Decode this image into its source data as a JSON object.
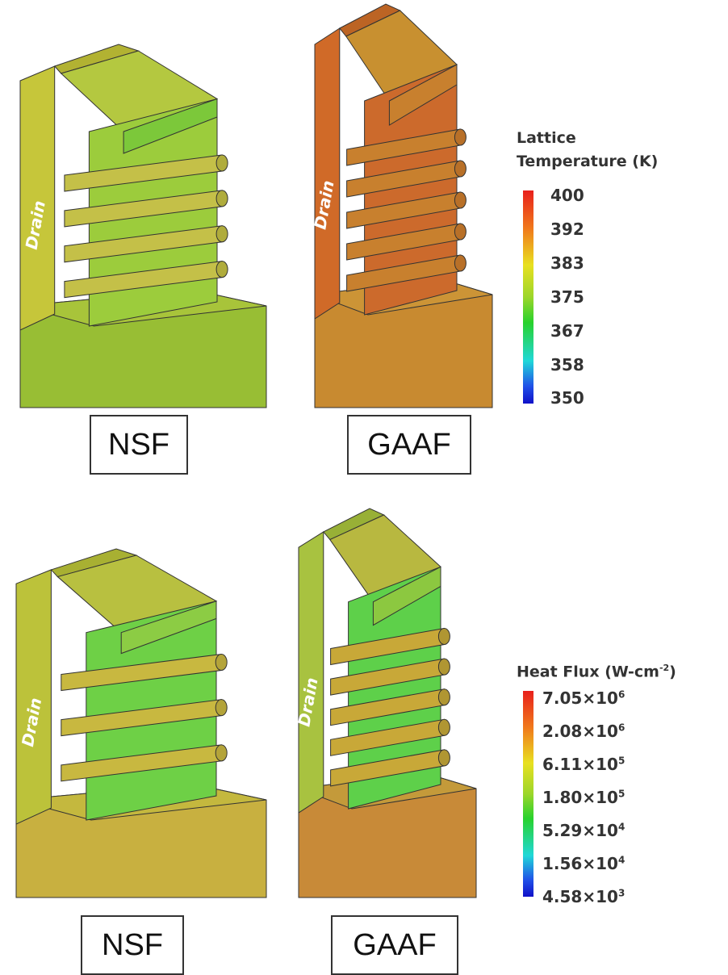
{
  "top": {
    "structures": [
      {
        "label": "NSF",
        "drain_label": "Drain"
      },
      {
        "label": "GAAF",
        "drain_label": "Drain"
      }
    ],
    "legend": {
      "title_line1": "Lattice",
      "title_line2": "Temperature (K)",
      "ticks": [
        "400",
        "392",
        "383",
        "375",
        "367",
        "358",
        "350"
      ]
    }
  },
  "bottom": {
    "structures": [
      {
        "label": "NSF",
        "drain_label": "Drain"
      },
      {
        "label": "GAAF",
        "drain_label": "Drain"
      }
    ],
    "legend": {
      "title": "Heat Flux (W-cm",
      "title_exp": "-2",
      "title_end": ")",
      "ticks": [
        {
          "mantissa": "7.05×10",
          "exp": "6"
        },
        {
          "mantissa": "2.08×10",
          "exp": "6"
        },
        {
          "mantissa": "6.11×10",
          "exp": "5"
        },
        {
          "mantissa": "1.80×10",
          "exp": "5"
        },
        {
          "mantissa": "5.29×10",
          "exp": "4"
        },
        {
          "mantissa": "1.56×10",
          "exp": "4"
        },
        {
          "mantissa": "4.58×10",
          "exp": "3"
        }
      ]
    }
  },
  "colormap": [
    "#e8201c",
    "#f07a1c",
    "#e8e020",
    "#28d22c",
    "#20d8d8",
    "#2050e8",
    "#1010c8"
  ]
}
